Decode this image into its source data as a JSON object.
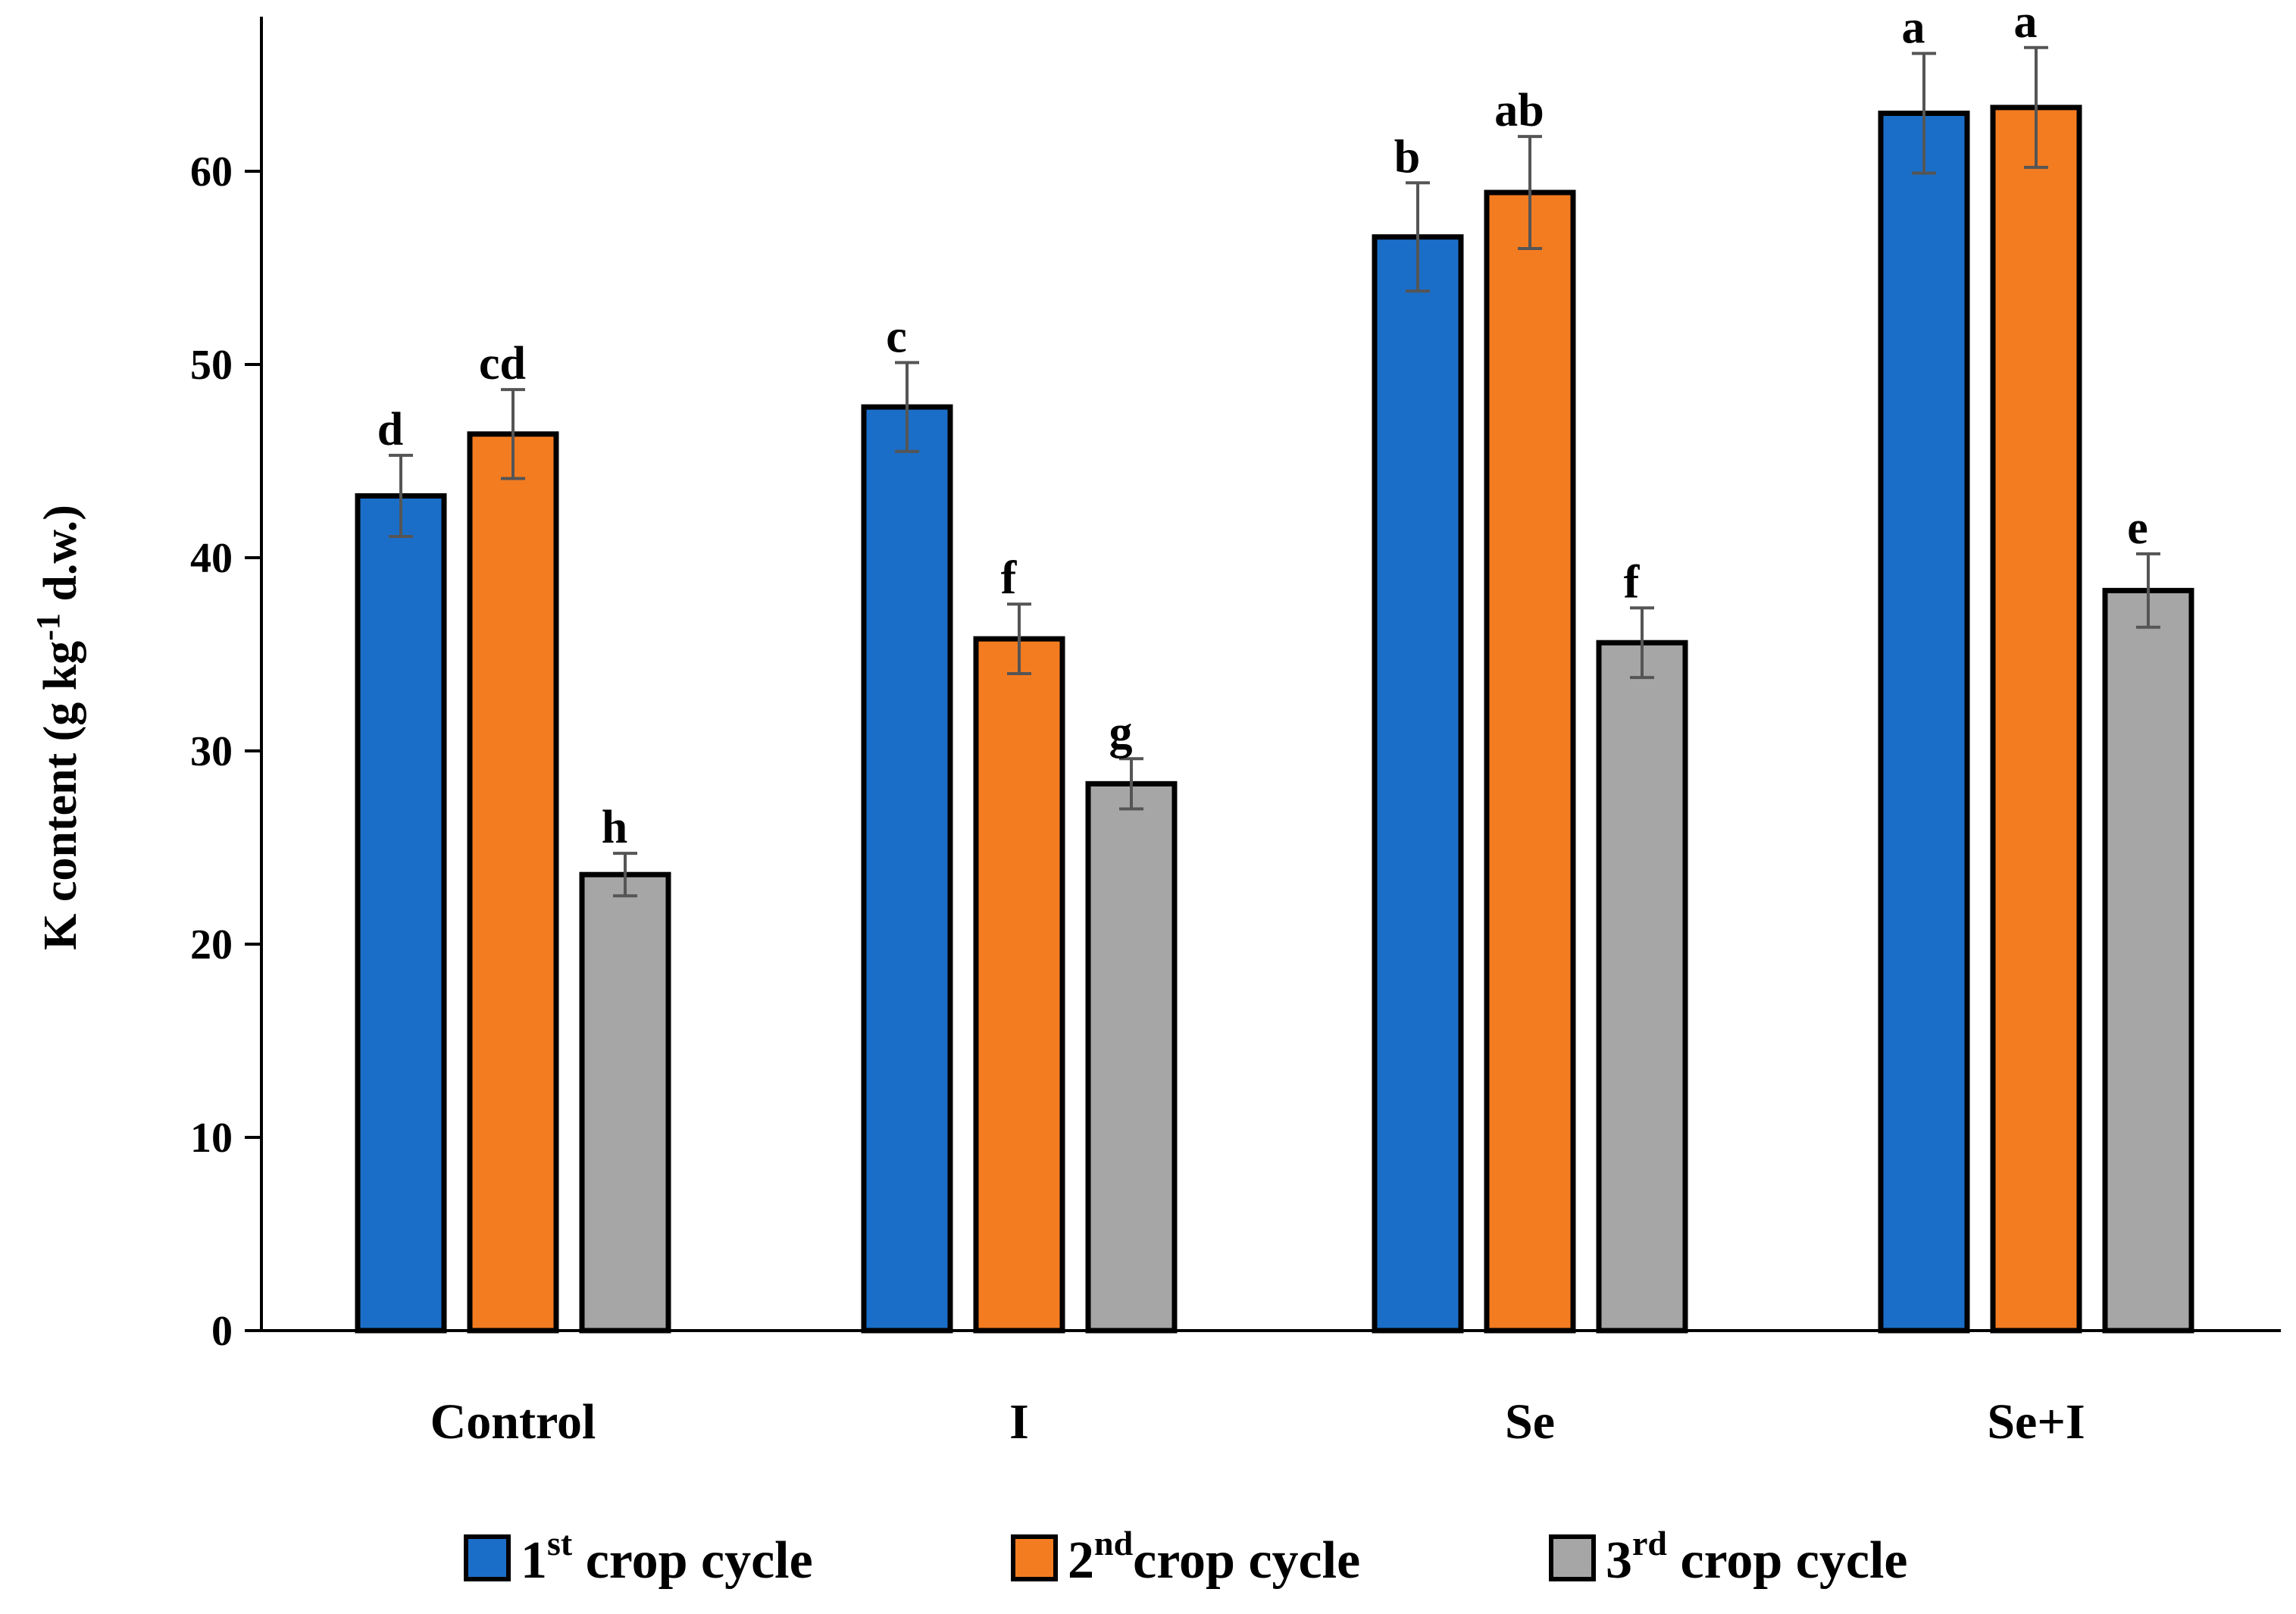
{
  "chart_data": {
    "type": "bar",
    "categories": [
      "Control",
      "I",
      "Se",
      "Se+I"
    ],
    "ylabel": {
      "prefix": "K content (g kg",
      "sup": "-1",
      "suffix": " d.w.)"
    },
    "ylim": [
      0,
      70
    ],
    "yticks": [
      0,
      10,
      20,
      30,
      40,
      50,
      60
    ],
    "grid": false,
    "legend_position": "bottom",
    "series": [
      {
        "name": "1st crop cycle",
        "legend": {
          "num": "1",
          "sup": "st",
          "text": " crop cycle"
        },
        "color": "#1b6ec8",
        "values": [
          43.2,
          47.8,
          56.6,
          63.0
        ],
        "errors": [
          2.1,
          2.3,
          2.8,
          3.1
        ],
        "letters": [
          "d",
          "c",
          "b",
          "a"
        ]
      },
      {
        "name": "2nd crop cycle",
        "legend": {
          "num": "2",
          "sup": "nd",
          "text": "crop cycle"
        },
        "color": "#f47c20",
        "values": [
          46.4,
          35.8,
          58.9,
          63.3
        ],
        "errors": [
          2.3,
          1.8,
          2.9,
          3.1
        ],
        "letters": [
          "cd",
          "f",
          "ab",
          "a"
        ]
      },
      {
        "name": "3rd crop cycle",
        "legend": {
          "num": "3",
          "sup": "rd",
          "text": " crop cycle"
        },
        "color": "#a6a6a6",
        "values": [
          23.6,
          28.3,
          35.6,
          38.3
        ],
        "errors": [
          1.1,
          1.3,
          1.8,
          1.9
        ],
        "letters": [
          "h",
          "g",
          "f",
          "e"
        ]
      }
    ]
  }
}
